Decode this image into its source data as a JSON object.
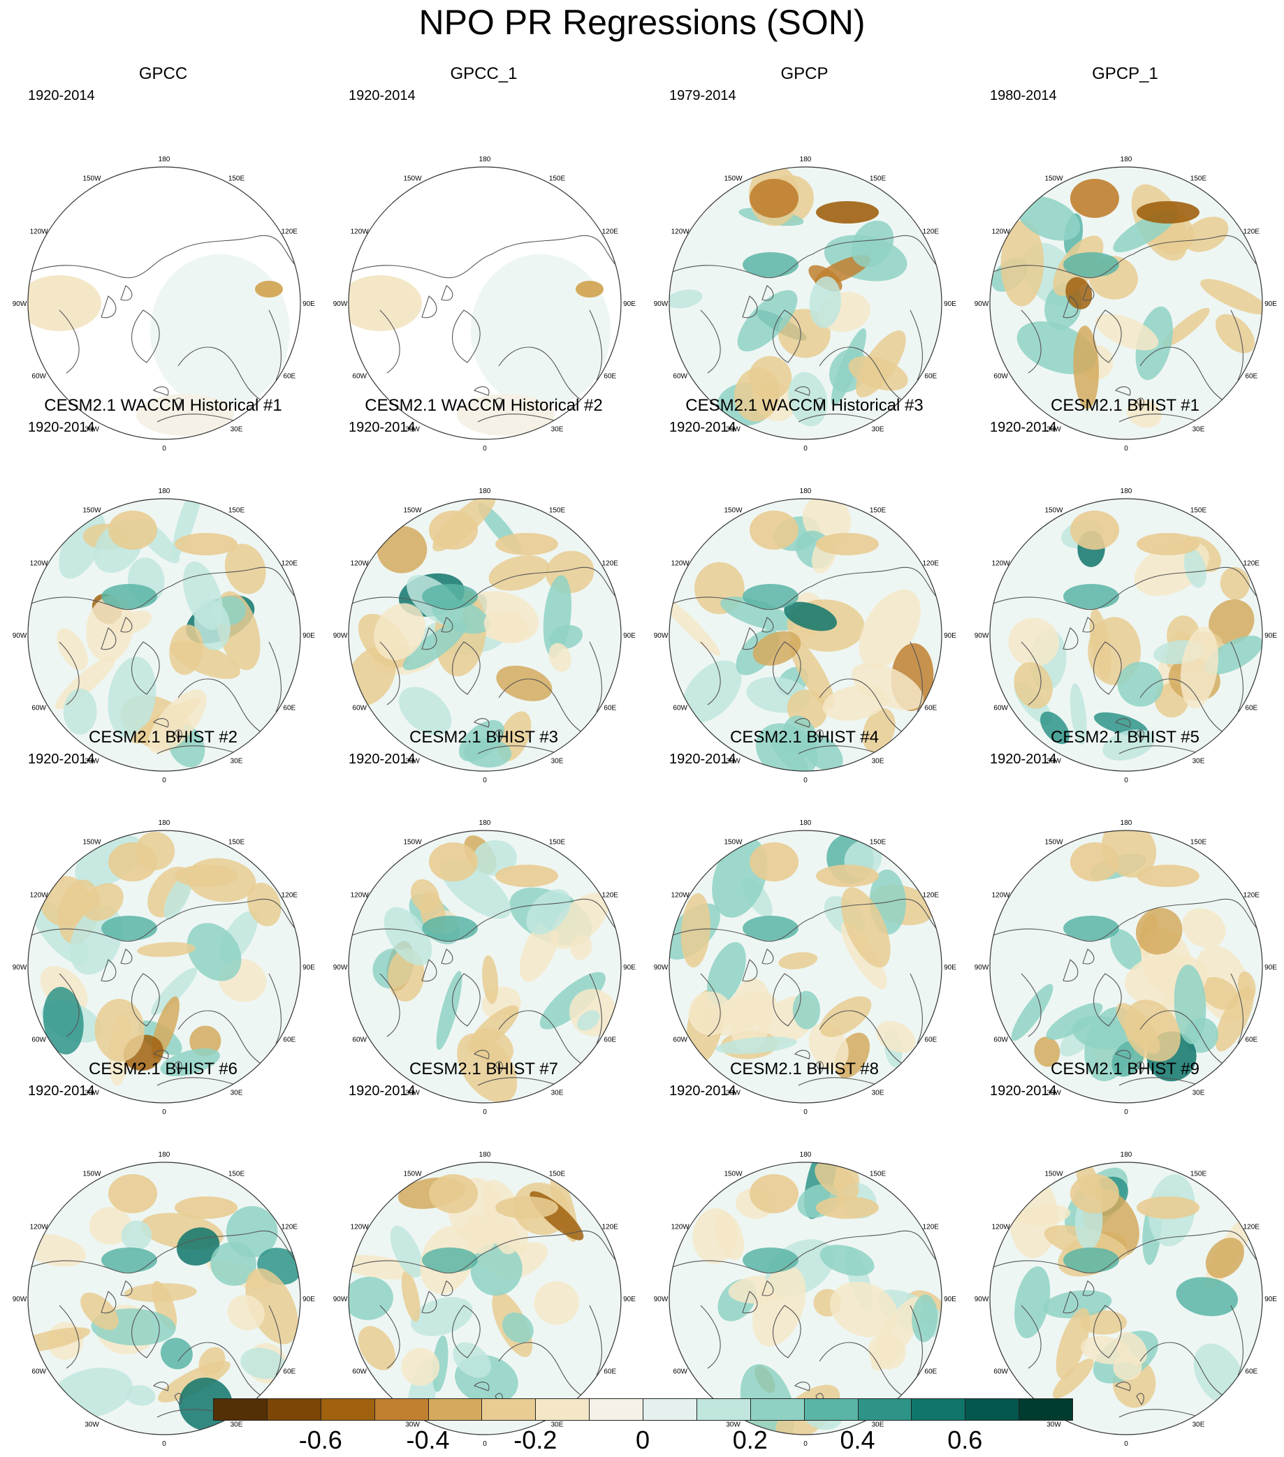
{
  "title": "NPO PR Regressions (SON)",
  "grid_labels": {
    "lon_180": "180",
    "lon_150W": "150W",
    "lon_150E": "150E",
    "lon_120W": "120W",
    "lon_120E": "120E",
    "lon_90W": "90W",
    "lon_90E": "90E",
    "lon_60W": "60W",
    "lon_60E": "60E",
    "lon_30W": "30W",
    "lon_30E": "30E",
    "lon_0": "0"
  },
  "panels": [
    {
      "title": "GPCC",
      "period": "1920-2014",
      "style": "gpcc"
    },
    {
      "title": "GPCC_1",
      "period": "1920-2014",
      "style": "gpcc"
    },
    {
      "title": "GPCP",
      "period": "1979-2014",
      "style": "gpcp"
    },
    {
      "title": "GPCP_1",
      "period": "1980-2014",
      "style": "gpcp"
    },
    {
      "title": "CESM2.1 WACCM Historical #1",
      "period": "1920-2014",
      "style": "model"
    },
    {
      "title": "CESM2.1 WACCM Historical #2",
      "period": "1920-2014",
      "style": "model"
    },
    {
      "title": "CESM2.1 WACCM Historical #3",
      "period": "1920-2014",
      "style": "model"
    },
    {
      "title": "CESM2.1 BHIST #1",
      "period": "1920-2014",
      "style": "model"
    },
    {
      "title": "CESM2.1 BHIST #2",
      "period": "1920-2014",
      "style": "model"
    },
    {
      "title": "CESM2.1 BHIST #3",
      "period": "1920-2014",
      "style": "model"
    },
    {
      "title": "CESM2.1 BHIST #4",
      "period": "1920-2014",
      "style": "model"
    },
    {
      "title": "CESM2.1 BHIST #5",
      "period": "1920-2014",
      "style": "model"
    },
    {
      "title": "CESM2.1 BHIST #6",
      "period": "1920-2014",
      "style": "model"
    },
    {
      "title": "CESM2.1 BHIST #7",
      "period": "1920-2014",
      "style": "model"
    },
    {
      "title": "CESM2.1 BHIST #8",
      "period": "1920-2014",
      "style": "model"
    },
    {
      "title": "CESM2.1 BHIST #9",
      "period": "1920-2014",
      "style": "model"
    }
  ],
  "colorbar": {
    "colors": [
      "#543005",
      "#7c4607",
      "#a0620f",
      "#c08030",
      "#d4aa5e",
      "#e8cc92",
      "#f4e7c8",
      "#f5f1e6",
      "#e4f1ef",
      "#c0e6de",
      "#8fd2c4",
      "#5bb5a6",
      "#2e9488",
      "#10766b",
      "#03574d",
      "#003c30"
    ],
    "labels": [
      {
        "text": "-0.6",
        "index": 2
      },
      {
        "text": "-0.4",
        "index": 4
      },
      {
        "text": "-0.2",
        "index": 6
      },
      {
        "text": "0",
        "index": 8
      },
      {
        "text": "0.2",
        "index": 10
      },
      {
        "text": "0.4",
        "index": 12
      },
      {
        "text": "0.6",
        "index": 14
      }
    ]
  }
}
